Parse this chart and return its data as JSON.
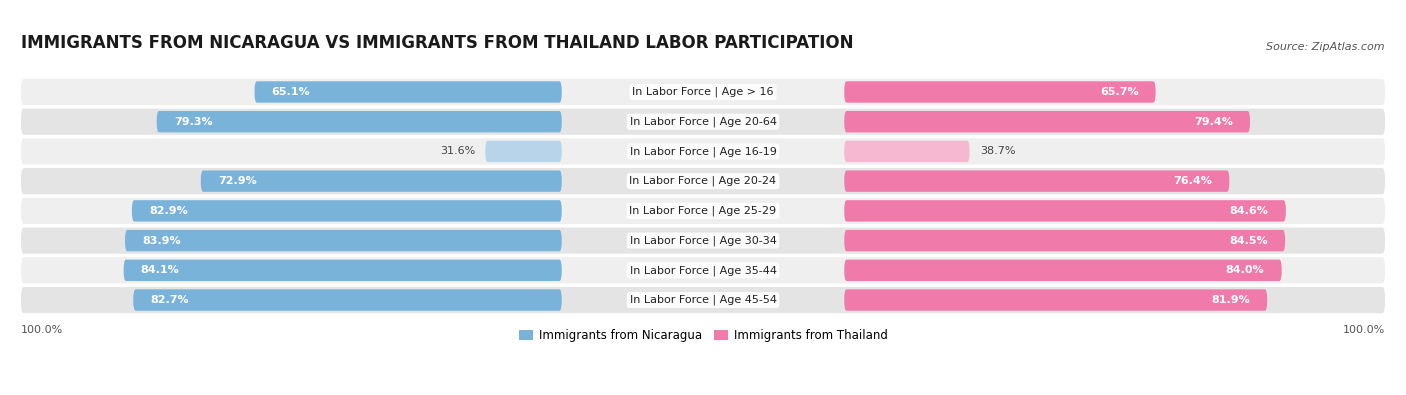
{
  "title": "IMMIGRANTS FROM NICARAGUA VS IMMIGRANTS FROM THAILAND LABOR PARTICIPATION",
  "source": "Source: ZipAtlas.com",
  "categories": [
    "In Labor Force | Age > 16",
    "In Labor Force | Age 20-64",
    "In Labor Force | Age 16-19",
    "In Labor Force | Age 20-24",
    "In Labor Force | Age 25-29",
    "In Labor Force | Age 30-34",
    "In Labor Force | Age 35-44",
    "In Labor Force | Age 45-54"
  ],
  "nicaragua_values": [
    65.1,
    79.3,
    31.6,
    72.9,
    82.9,
    83.9,
    84.1,
    82.7
  ],
  "thailand_values": [
    65.7,
    79.4,
    38.7,
    76.4,
    84.6,
    84.5,
    84.0,
    81.9
  ],
  "nicaragua_color": "#7ab3d9",
  "nicaragua_color_light": "#b8d4eb",
  "thailand_color": "#f07aaa",
  "thailand_color_light": "#f5b8d0",
  "row_bg_color_odd": "#efefef",
  "row_bg_color_even": "#e4e4e4",
  "max_value": 100.0,
  "legend_nicaragua": "Immigrants from Nicaragua",
  "legend_thailand": "Immigrants from Thailand",
  "title_fontsize": 12,
  "source_fontsize": 8,
  "value_fontsize": 8,
  "cat_fontsize": 8,
  "bottom_label": "100.0%"
}
